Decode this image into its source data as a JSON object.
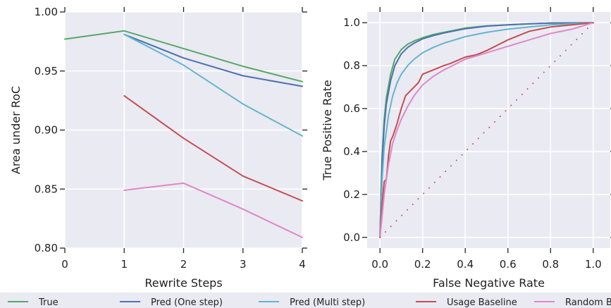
{
  "colors": {
    "true": "#55a868",
    "pred_one": "#4c72b0",
    "pred_multi": "#64b5cd",
    "usage": "#c44e52",
    "random": "#dd88c8",
    "panel": "#eaeaf2"
  },
  "legend": {
    "items": [
      {
        "label": "True",
        "color": "#55a868"
      },
      {
        "label": "Pred (One step)",
        "color": "#4c72b0"
      },
      {
        "label": "Pred (Multi step)",
        "color": "#64b5cd"
      },
      {
        "label": "Usage Baseline",
        "color": "#c44e52"
      },
      {
        "label": "Random Baseline",
        "color": "#dd88c8"
      }
    ],
    "placement": "bottom"
  },
  "chart_data": [
    {
      "type": "line",
      "title": "",
      "xlabel": "Rewrite Steps",
      "ylabel": "Area under RoC",
      "xlim": [
        0,
        4
      ],
      "ylim": [
        0.8,
        1.0
      ],
      "xticks": [
        "0",
        "1",
        "2",
        "3",
        "4"
      ],
      "yticks": [
        "0.80",
        "0.85",
        "0.90",
        "0.95",
        "1.00"
      ],
      "grid": true,
      "series": [
        {
          "name": "True",
          "color": "#55a868",
          "x": [
            0,
            1,
            2,
            3,
            4
          ],
          "y": [
            0.977,
            0.984,
            0.969,
            0.954,
            0.941
          ]
        },
        {
          "name": "Pred (One step)",
          "color": "#4c72b0",
          "x": [
            1,
            2,
            3,
            4
          ],
          "y": [
            0.981,
            0.961,
            0.946,
            0.937
          ]
        },
        {
          "name": "Pred (Multi step)",
          "color": "#64b5cd",
          "x": [
            1,
            2,
            3,
            4
          ],
          "y": [
            0.981,
            0.955,
            0.922,
            0.895
          ]
        },
        {
          "name": "Usage Baseline",
          "color": "#c44e52",
          "x": [
            1,
            2,
            3,
            4
          ],
          "y": [
            0.929,
            0.893,
            0.861,
            0.84
          ]
        },
        {
          "name": "Random Baseline",
          "color": "#dd88c8",
          "x": [
            1,
            2,
            3,
            4
          ],
          "y": [
            0.849,
            0.855,
            0.833,
            0.809
          ]
        }
      ]
    },
    {
      "type": "line",
      "title": "",
      "xlabel": "False Negative Rate",
      "ylabel": "True Positive Rate",
      "xlim": [
        -0.06,
        1.08
      ],
      "ylim": [
        -0.05,
        1.05
      ],
      "xticks": [
        "0.0",
        "0.2",
        "0.4",
        "0.6",
        "0.8",
        "1.0"
      ],
      "yticks": [
        "0.0",
        "0.2",
        "0.4",
        "0.6",
        "0.8",
        "1.0"
      ],
      "grid": true,
      "series": [
        {
          "name": "True",
          "color": "#55a868",
          "x": [
            0,
            0.005,
            0.01,
            0.02,
            0.03,
            0.05,
            0.07,
            0.1,
            0.13,
            0.16,
            0.2,
            0.25,
            0.3,
            0.4,
            0.5,
            0.6,
            0.7,
            0.8,
            0.9,
            1.0
          ],
          "y": [
            0,
            0.22,
            0.38,
            0.55,
            0.65,
            0.76,
            0.83,
            0.875,
            0.9,
            0.915,
            0.93,
            0.945,
            0.955,
            0.975,
            0.985,
            0.99,
            0.995,
            0.998,
            0.999,
            1.0
          ]
        },
        {
          "name": "Pred (One step)",
          "color": "#4c72b0",
          "x": [
            0,
            0.005,
            0.01,
            0.02,
            0.03,
            0.05,
            0.07,
            0.1,
            0.13,
            0.16,
            0.2,
            0.25,
            0.3,
            0.4,
            0.5,
            0.6,
            0.7,
            0.8,
            0.9,
            1.0
          ],
          "y": [
            0,
            0.2,
            0.35,
            0.52,
            0.62,
            0.73,
            0.8,
            0.855,
            0.885,
            0.905,
            0.925,
            0.94,
            0.952,
            0.972,
            0.984,
            0.99,
            0.995,
            0.998,
            0.999,
            1.0
          ]
        },
        {
          "name": "Pred (Multi step)",
          "color": "#64b5cd",
          "x": [
            0,
            0.005,
            0.01,
            0.02,
            0.04,
            0.06,
            0.08,
            0.1,
            0.13,
            0.16,
            0.2,
            0.25,
            0.3,
            0.4,
            0.5,
            0.6,
            0.7,
            0.8,
            0.9,
            1.0
          ],
          "y": [
            0,
            0.15,
            0.27,
            0.42,
            0.57,
            0.66,
            0.72,
            0.76,
            0.8,
            0.83,
            0.86,
            0.885,
            0.905,
            0.935,
            0.955,
            0.97,
            0.98,
            0.99,
            0.995,
            1.0
          ]
        },
        {
          "name": "Usage Baseline",
          "color": "#c44e52",
          "x": [
            0,
            0.01,
            0.02,
            0.03,
            0.04,
            0.05,
            0.06,
            0.08,
            0.1,
            0.12,
            0.15,
            0.18,
            0.2,
            0.25,
            0.3,
            0.33,
            0.4,
            0.45,
            0.5,
            0.6,
            0.7,
            0.8,
            0.9,
            1.0
          ],
          "y": [
            0,
            0.16,
            0.26,
            0.27,
            0.38,
            0.45,
            0.47,
            0.53,
            0.6,
            0.66,
            0.69,
            0.72,
            0.76,
            0.78,
            0.8,
            0.81,
            0.84,
            0.85,
            0.87,
            0.92,
            0.96,
            0.98,
            0.99,
            1.0
          ]
        },
        {
          "name": "Random Baseline",
          "color": "#dd88c8",
          "x": [
            0,
            0.01,
            0.02,
            0.04,
            0.06,
            0.08,
            0.1,
            0.13,
            0.16,
            0.2,
            0.25,
            0.3,
            0.4,
            0.5,
            0.6,
            0.7,
            0.8,
            0.9,
            1.0
          ],
          "y": [
            0,
            0.1,
            0.2,
            0.34,
            0.44,
            0.5,
            0.55,
            0.61,
            0.66,
            0.71,
            0.75,
            0.78,
            0.83,
            0.86,
            0.89,
            0.92,
            0.95,
            0.97,
            1.0
          ]
        },
        {
          "name": "chance",
          "color": "#c44e52",
          "dotted": true,
          "x": [
            0,
            1
          ],
          "y": [
            0,
            1
          ]
        }
      ]
    }
  ]
}
